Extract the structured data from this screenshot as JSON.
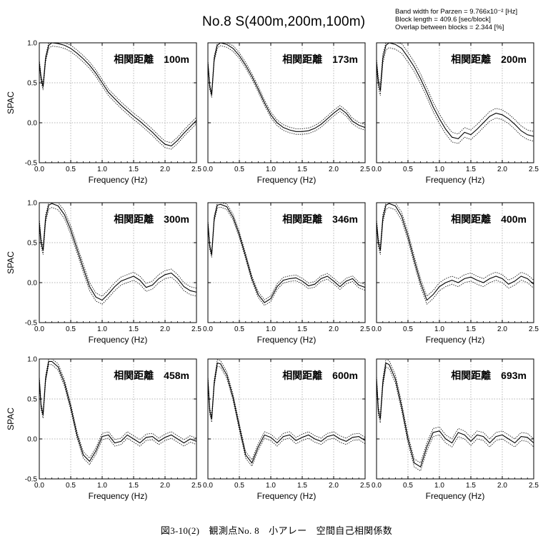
{
  "header": {
    "title": "No.8   S(400m,200m,100m)",
    "params": [
      "Band width for Parzen = 9.766x10⁻² [Hz]",
      "Block length = 409.6 [sec/block]",
      "Overlap between blocks = 2.344 [%]"
    ]
  },
  "caption": "図3-10(2)　観測点No. 8　小アレー　空間自己相関係数",
  "colors": {
    "line": "#000000",
    "grid": "#9a9a9a",
    "frame": "#000000"
  },
  "chart_data": [
    {
      "type": "line",
      "label": "相関距離　100m",
      "xlabel": "Frequency (Hz)",
      "ylabel": "SPAC",
      "xlim": [
        0,
        2.5
      ],
      "ylim": [
        -0.5,
        1.0
      ],
      "xticks": [
        "0.0",
        "0.5",
        "1.0",
        "1.5",
        "2.0",
        "2.5"
      ],
      "yticks": [
        "-0.5",
        "0.0",
        "0.5",
        "1.0"
      ],
      "x": [
        0,
        0.03,
        0.06,
        0.1,
        0.15,
        0.2,
        0.3,
        0.4,
        0.5,
        0.6,
        0.7,
        0.8,
        0.9,
        1.0,
        1.1,
        1.2,
        1.3,
        1.4,
        1.5,
        1.6,
        1.7,
        1.8,
        1.9,
        2.0,
        2.1,
        2.2,
        2.3,
        2.4,
        2.5
      ],
      "y": [
        0.75,
        0.55,
        0.45,
        0.8,
        0.97,
        1.0,
        0.99,
        0.97,
        0.93,
        0.87,
        0.8,
        0.72,
        0.62,
        0.5,
        0.38,
        0.3,
        0.22,
        0.15,
        0.08,
        0.02,
        -0.05,
        -0.12,
        -0.2,
        -0.27,
        -0.29,
        -0.22,
        -0.13,
        -0.05,
        0.03
      ],
      "band": 0.04
    },
    {
      "type": "line",
      "label": "相関距離　173m",
      "xlabel": "Frequency (Hz)",
      "ylabel": "",
      "xlim": [
        0,
        2.5
      ],
      "ylim": [
        -0.5,
        1.0
      ],
      "xticks": [
        "0.0",
        "0.5",
        "1.0",
        "1.5",
        "2.0",
        "2.5"
      ],
      "yticks": [],
      "x": [
        0,
        0.03,
        0.06,
        0.1,
        0.15,
        0.2,
        0.3,
        0.4,
        0.5,
        0.6,
        0.7,
        0.8,
        0.9,
        1.0,
        1.1,
        1.2,
        1.3,
        1.4,
        1.5,
        1.6,
        1.7,
        1.8,
        1.9,
        2.0,
        2.1,
        2.2,
        2.3,
        2.4,
        2.5
      ],
      "y": [
        0.75,
        0.45,
        0.35,
        0.8,
        0.97,
        1.0,
        0.98,
        0.93,
        0.84,
        0.72,
        0.58,
        0.42,
        0.25,
        0.1,
        0.0,
        -0.06,
        -0.09,
        -0.11,
        -0.11,
        -0.1,
        -0.07,
        -0.02,
        0.05,
        0.12,
        0.18,
        0.12,
        0.02,
        -0.03,
        -0.06
      ],
      "band": 0.035
    },
    {
      "type": "line",
      "label": "相関距離　200m",
      "xlabel": "Frequency (Hz)",
      "ylabel": "",
      "xlim": [
        0,
        2.5
      ],
      "ylim": [
        -0.5,
        1.0
      ],
      "xticks": [
        "0.0",
        "0.5",
        "1.0",
        "1.5",
        "2.0",
        "2.5"
      ],
      "yticks": [],
      "x": [
        0,
        0.03,
        0.06,
        0.1,
        0.15,
        0.2,
        0.3,
        0.4,
        0.5,
        0.6,
        0.7,
        0.8,
        0.9,
        1.0,
        1.1,
        1.2,
        1.3,
        1.4,
        1.5,
        1.6,
        1.7,
        1.8,
        1.9,
        2.0,
        2.1,
        2.2,
        2.3,
        2.4,
        2.5
      ],
      "y": [
        0.75,
        0.5,
        0.4,
        0.8,
        0.97,
        1.0,
        0.98,
        0.93,
        0.82,
        0.7,
        0.55,
        0.38,
        0.2,
        0.05,
        -0.08,
        -0.18,
        -0.2,
        -0.12,
        -0.15,
        -0.08,
        0.0,
        0.08,
        0.12,
        0.1,
        0.05,
        -0.02,
        -0.1,
        -0.15,
        -0.17
      ],
      "band": 0.06
    },
    {
      "type": "line",
      "label": "相関距離　300m",
      "xlabel": "Frequency (Hz)",
      "ylabel": "SPAC",
      "xlim": [
        0,
        2.5
      ],
      "ylim": [
        -0.5,
        1.0
      ],
      "xticks": [
        "0.0",
        "0.5",
        "1.0",
        "1.5",
        "2.0",
        "2.5"
      ],
      "yticks": [
        "-0.5",
        "0.0",
        "0.5",
        "1.0"
      ],
      "x": [
        0,
        0.03,
        0.06,
        0.1,
        0.15,
        0.2,
        0.3,
        0.4,
        0.5,
        0.6,
        0.7,
        0.8,
        0.9,
        1.0,
        1.1,
        1.2,
        1.3,
        1.4,
        1.5,
        1.6,
        1.7,
        1.8,
        1.9,
        2.0,
        2.1,
        2.2,
        2.3,
        2.4,
        2.5
      ],
      "y": [
        0.75,
        0.5,
        0.4,
        0.8,
        0.97,
        0.99,
        0.96,
        0.85,
        0.66,
        0.42,
        0.18,
        -0.05,
        -0.18,
        -0.22,
        -0.14,
        -0.05,
        0.02,
        0.05,
        0.08,
        0.03,
        -0.06,
        -0.03,
        0.05,
        0.1,
        0.12,
        0.05,
        -0.05,
        -0.1,
        -0.12
      ],
      "band": 0.05
    },
    {
      "type": "line",
      "label": "相関距離　346m",
      "xlabel": "Frequency (Hz)",
      "ylabel": "",
      "xlim": [
        0,
        2.5
      ],
      "ylim": [
        -0.5,
        1.0
      ],
      "xticks": [
        "0.0",
        "0.5",
        "1.0",
        "1.5",
        "2.0",
        "2.5"
      ],
      "yticks": [],
      "x": [
        0,
        0.03,
        0.06,
        0.1,
        0.15,
        0.2,
        0.3,
        0.4,
        0.5,
        0.6,
        0.7,
        0.8,
        0.9,
        1.0,
        1.1,
        1.2,
        1.3,
        1.4,
        1.5,
        1.6,
        1.7,
        1.8,
        1.9,
        2.0,
        2.1,
        2.2,
        2.3,
        2.4,
        2.5
      ],
      "y": [
        0.75,
        0.45,
        0.35,
        0.8,
        0.97,
        0.98,
        0.95,
        0.82,
        0.6,
        0.33,
        0.05,
        -0.15,
        -0.25,
        -0.2,
        -0.05,
        0.03,
        0.05,
        0.06,
        0.02,
        -0.04,
        -0.02,
        0.05,
        0.08,
        0.02,
        -0.05,
        0.02,
        0.05,
        -0.03,
        -0.06
      ],
      "band": 0.035
    },
    {
      "type": "line",
      "label": "相関距離　400m",
      "xlabel": "Frequency (Hz)",
      "ylabel": "",
      "xlim": [
        0,
        2.5
      ],
      "ylim": [
        -0.5,
        1.0
      ],
      "xticks": [
        "0.0",
        "0.5",
        "1.0",
        "1.5",
        "2.0",
        "2.5"
      ],
      "yticks": [],
      "x": [
        0,
        0.03,
        0.06,
        0.1,
        0.15,
        0.2,
        0.3,
        0.4,
        0.5,
        0.6,
        0.7,
        0.8,
        0.9,
        1.0,
        1.1,
        1.2,
        1.3,
        1.4,
        1.5,
        1.6,
        1.7,
        1.8,
        1.9,
        2.0,
        2.1,
        2.2,
        2.3,
        2.4,
        2.5
      ],
      "y": [
        0.75,
        0.5,
        0.4,
        0.8,
        0.97,
        0.99,
        0.96,
        0.83,
        0.58,
        0.28,
        0.0,
        -0.22,
        -0.15,
        -0.05,
        0.0,
        0.03,
        0.0,
        0.05,
        0.07,
        0.03,
        0.0,
        0.05,
        0.08,
        0.05,
        -0.02,
        0.02,
        0.08,
        0.05,
        -0.02
      ],
      "band": 0.05
    },
    {
      "type": "line",
      "label": "相関距離　458m",
      "xlabel": "Frequency (Hz)",
      "ylabel": "SPAC",
      "xlim": [
        0,
        2.5
      ],
      "ylim": [
        -0.5,
        1.0
      ],
      "xticks": [
        "0.0",
        "0.5",
        "1.0",
        "1.5",
        "2.0",
        "2.5"
      ],
      "yticks": [
        "-0.5",
        "0.0",
        "0.5",
        "1.0"
      ],
      "x": [
        0,
        0.03,
        0.06,
        0.1,
        0.15,
        0.2,
        0.3,
        0.4,
        0.5,
        0.6,
        0.7,
        0.8,
        0.9,
        1.0,
        1.1,
        1.2,
        1.3,
        1.4,
        1.5,
        1.6,
        1.7,
        1.8,
        1.9,
        2.0,
        2.1,
        2.2,
        2.3,
        2.4,
        2.5
      ],
      "y": [
        0.75,
        0.4,
        0.3,
        0.75,
        0.97,
        0.97,
        0.9,
        0.7,
        0.4,
        0.05,
        -0.2,
        -0.28,
        -0.15,
        0.03,
        0.05,
        -0.05,
        -0.03,
        0.05,
        0.0,
        -0.05,
        0.02,
        0.03,
        -0.03,
        0.02,
        0.05,
        0.0,
        -0.05,
        0.0,
        -0.03
      ],
      "band": 0.04
    },
    {
      "type": "line",
      "label": "相関距離　600m",
      "xlabel": "Frequency (Hz)",
      "ylabel": "",
      "xlim": [
        0,
        2.5
      ],
      "ylim": [
        -0.5,
        1.0
      ],
      "xticks": [
        "0.0",
        "0.5",
        "1.0",
        "1.5",
        "2.0",
        "2.5"
      ],
      "yticks": [],
      "x": [
        0,
        0.03,
        0.06,
        0.1,
        0.15,
        0.2,
        0.3,
        0.4,
        0.5,
        0.6,
        0.7,
        0.8,
        0.9,
        1.0,
        1.1,
        1.2,
        1.3,
        1.4,
        1.5,
        1.6,
        1.7,
        1.8,
        1.9,
        2.0,
        2.1,
        2.2,
        2.3,
        2.4,
        2.5
      ],
      "y": [
        0.75,
        0.35,
        0.25,
        0.7,
        0.95,
        0.94,
        0.8,
        0.52,
        0.15,
        -0.2,
        -0.3,
        -0.1,
        0.05,
        0.02,
        -0.05,
        0.03,
        0.05,
        -0.02,
        0.02,
        0.05,
        0.0,
        -0.03,
        0.03,
        0.05,
        0.0,
        -0.03,
        0.02,
        0.03,
        -0.02
      ],
      "band": 0.04
    },
    {
      "type": "line",
      "label": "相関距離　693m",
      "xlabel": "Frequency (Hz)",
      "ylabel": "",
      "xlim": [
        0,
        2.5
      ],
      "ylim": [
        -0.5,
        1.0
      ],
      "xticks": [
        "0.0",
        "0.5",
        "1.0",
        "1.5",
        "2.0",
        "2.5"
      ],
      "yticks": [],
      "x": [
        0,
        0.03,
        0.06,
        0.1,
        0.15,
        0.2,
        0.3,
        0.4,
        0.5,
        0.6,
        0.7,
        0.8,
        0.9,
        1.0,
        1.1,
        1.2,
        1.3,
        1.4,
        1.5,
        1.6,
        1.7,
        1.8,
        1.9,
        2.0,
        2.1,
        2.2,
        2.3,
        2.4,
        2.5
      ],
      "y": [
        0.75,
        0.35,
        0.25,
        0.7,
        0.95,
        0.93,
        0.75,
        0.4,
        0.0,
        -0.3,
        -0.35,
        -0.1,
        0.08,
        0.1,
        0.0,
        -0.05,
        0.08,
        0.05,
        -0.03,
        0.05,
        0.03,
        -0.05,
        0.03,
        0.05,
        0.0,
        -0.05,
        0.03,
        0.02,
        -0.05
      ],
      "band": 0.05
    }
  ]
}
